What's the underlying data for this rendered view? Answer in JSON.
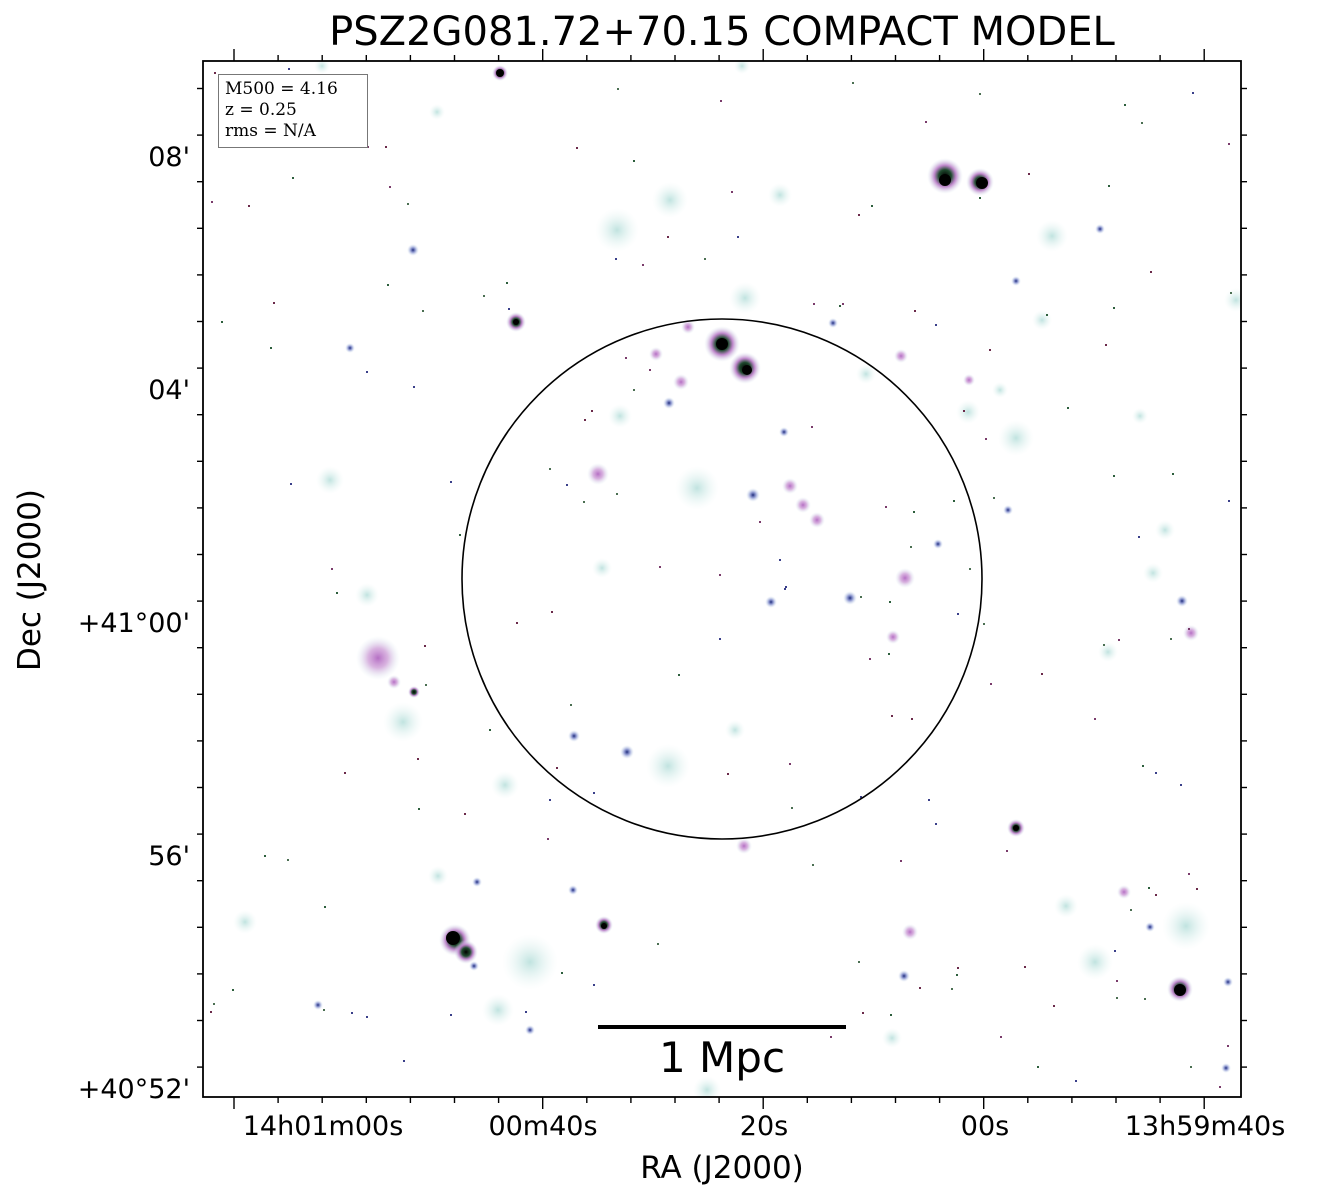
{
  "title": "PSZ2G081.72+70.15 COMPACT MODEL",
  "info_box": {
    "line1": "M500 = 4.16",
    "line2": "z = 0.25",
    "line3": "rms = N/A"
  },
  "axes": {
    "x_title": "RA (J2000)",
    "y_title": "Dec (J2000)",
    "x_ticks": [
      "14h01m00s",
      "00m40s",
      "20s",
      "00s",
      "13h59m40s"
    ],
    "y_ticks": [
      "08'",
      "04'",
      "+41°00'",
      "56'",
      "+40°52'"
    ]
  },
  "scalebar": {
    "label": "1 Mpc"
  },
  "colors": {
    "halo": "#cfe9e6",
    "magenta": "#c98ed2",
    "blue": "#5d6bb5",
    "green": "#2d5e3c",
    "core": "#000000"
  }
}
